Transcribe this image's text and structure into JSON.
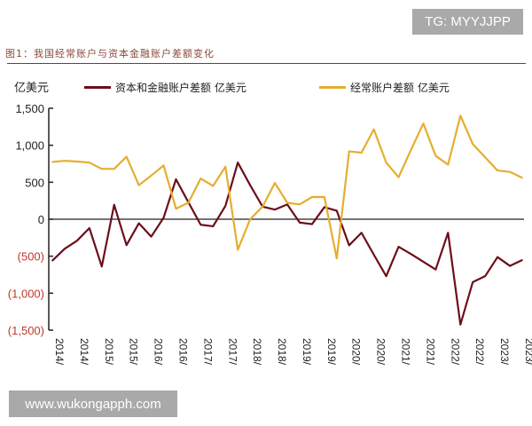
{
  "overlay": {
    "tg_label": "TG: MYYJJPP",
    "site_label": "www.wukongapph.com"
  },
  "colors": {
    "capital": "#6b0f1a",
    "current": "#e6ad2e",
    "negative_tick": "#c0392b"
  },
  "chart_data": {
    "type": "line",
    "title": "图1：我国经常账户与资本金融账户差额变化",
    "ylabel": "亿美元",
    "ylim": [
      -1500,
      1500
    ],
    "yticks": [
      1500,
      1000,
      500,
      0,
      -500,
      -1000,
      -1500
    ],
    "ytick_labels": [
      "1,500",
      "1,000",
      "500",
      "0",
      "(500)",
      "(1,000)",
      "(1,500)"
    ],
    "xtick_labels": [
      "2014/",
      "2014/",
      "2015/",
      "2015/",
      "2016/",
      "2016/",
      "2017/",
      "2017/",
      "2018/",
      "2018/",
      "2019/",
      "2019/",
      "2020/",
      "2020/",
      "2021/",
      "2021/",
      "2022/",
      "2022/",
      "2023/",
      "2023/"
    ],
    "grid": false,
    "legend": "top",
    "series": [
      {
        "name": "资本和金融账户差额 亿美元",
        "values": [
          -560,
          -400,
          -290,
          -120,
          -640,
          195,
          -350,
          -55,
          -235,
          20,
          540,
          230,
          -75,
          -95,
          180,
          766,
          460,
          170,
          130,
          200,
          -45,
          -67,
          163,
          115,
          -353,
          -183,
          -480,
          -770,
          -373,
          -470,
          -575,
          -680,
          -183,
          -1425,
          -850,
          -770,
          -512,
          -631,
          -552
        ]
      },
      {
        "name": "经常账户差额 亿美元",
        "values": [
          775,
          790,
          780,
          766,
          680,
          680,
          845,
          460,
          590,
          727,
          143,
          222,
          550,
          450,
          710,
          -413,
          0,
          170,
          490,
          222,
          200,
          300,
          300,
          -530,
          917,
          900,
          1215,
          766,
          568,
          937,
          1294,
          857,
          738,
          1400,
          1016,
          837,
          659,
          640,
          560
        ]
      }
    ]
  }
}
